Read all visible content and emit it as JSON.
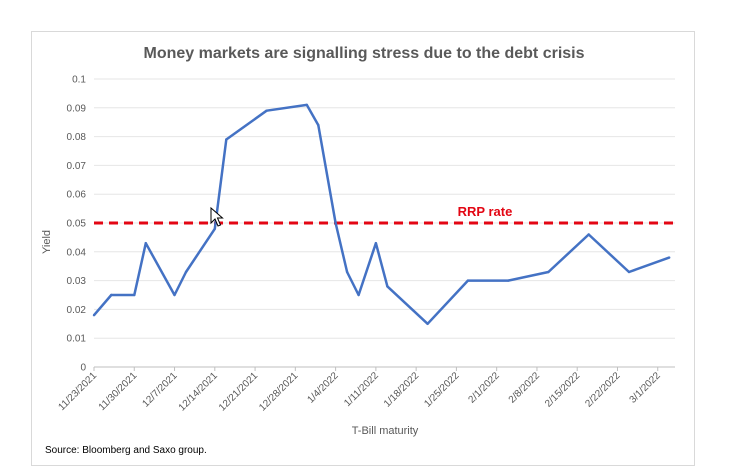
{
  "chart_data": {
    "type": "line",
    "title": "Money markets are signalling stress due to the debt crisis",
    "xlabel": "T-Bill maturity",
    "ylabel": "Yield",
    "ylim": [
      0,
      0.1
    ],
    "y_ticks": [
      "0",
      "0.01",
      "0.02",
      "0.03",
      "0.04",
      "0.05",
      "0.06",
      "0.07",
      "0.08",
      "0.09",
      "0.1"
    ],
    "x_ticks": [
      "11/23/2021",
      "11/30/2021",
      "12/7/2021",
      "12/14/2021",
      "12/21/2021",
      "12/28/2021",
      "1/4/2022",
      "1/11/2022",
      "1/18/2022",
      "1/25/2022",
      "2/1/2022",
      "2/8/2022",
      "2/15/2022",
      "2/22/2022",
      "3/1/2022"
    ],
    "x_range": [
      "2021-11-23",
      "2022-03-04"
    ],
    "grid": true,
    "series": [
      {
        "color": "#4472c4",
        "points": [
          [
            "2021-11-23",
            0.018
          ],
          [
            "2021-11-26",
            0.025
          ],
          [
            "2021-11-30",
            0.025
          ],
          [
            "2021-12-02",
            0.043
          ],
          [
            "2021-12-07",
            0.025
          ],
          [
            "2021-12-09",
            0.033
          ],
          [
            "2021-12-14",
            0.048
          ],
          [
            "2021-12-16",
            0.079
          ],
          [
            "2021-12-23",
            0.089
          ],
          [
            "2021-12-30",
            0.091
          ],
          [
            "2022-01-01",
            0.084
          ],
          [
            "2022-01-04",
            0.05
          ],
          [
            "2022-01-06",
            0.033
          ],
          [
            "2022-01-08",
            0.025
          ],
          [
            "2022-01-11",
            0.043
          ],
          [
            "2022-01-13",
            0.028
          ],
          [
            "2022-01-20",
            0.015
          ],
          [
            "2022-01-27",
            0.03
          ],
          [
            "2022-02-03",
            0.03
          ],
          [
            "2022-02-10",
            0.033
          ],
          [
            "2022-02-17",
            0.046
          ],
          [
            "2022-02-24",
            0.033
          ],
          [
            "2022-03-03",
            0.038
          ]
        ]
      }
    ],
    "reference_line": {
      "label": "RRP rate",
      "value": 0.05,
      "color": "#e30613",
      "style": "dashed"
    },
    "source": "Source: Bloomberg and Saxo group."
  }
}
